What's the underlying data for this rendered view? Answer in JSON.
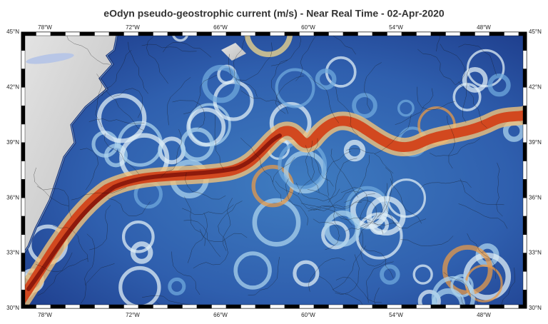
{
  "title": "eOdyn pseudo-geostrophic current (m/s) - Near Real Time - 02-Apr-2020",
  "map": {
    "lon_labels": [
      "78°W",
      "72°W",
      "66°W",
      "60°W",
      "54°W",
      "48°W"
    ],
    "lat_labels": [
      "45°N",
      "42°N",
      "39°N",
      "36°N",
      "33°N",
      "30°N"
    ]
  }
}
